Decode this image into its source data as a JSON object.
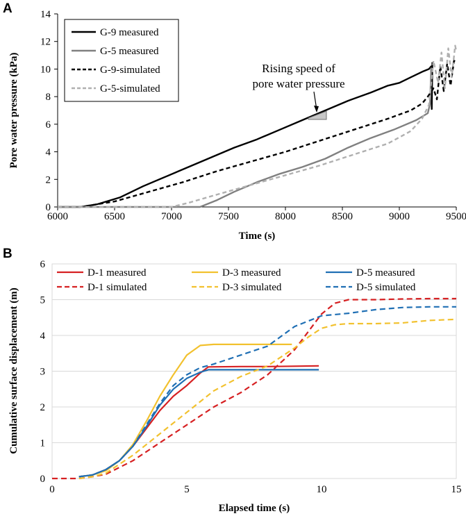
{
  "chart_data": [
    {
      "panel": "A",
      "type": "line",
      "title": "",
      "xlabel": "Time (s)",
      "ylabel": "Pore water pressure (kPa)",
      "xlim": [
        6000,
        9500
      ],
      "ylim": [
        0,
        14
      ],
      "xticks": [
        6000,
        6500,
        7000,
        7500,
        8000,
        8500,
        9000,
        9500
      ],
      "yticks": [
        0,
        2,
        4,
        6,
        8,
        10,
        12,
        14
      ],
      "legend_position": "top-left",
      "annotation": [
        "Rising speed of",
        "pore water pressure"
      ],
      "series": [
        {
          "name": "G-9 measured",
          "color": "#000000",
          "dash": "solid",
          "x": [
            6000,
            6200,
            6350,
            6550,
            6750,
            6950,
            7150,
            7350,
            7550,
            7750,
            7950,
            8150,
            8350,
            8550,
            8750,
            8900,
            9000,
            9100,
            9200,
            9260,
            9280,
            9285,
            9290
          ],
          "y": [
            0,
            0,
            0.2,
            0.7,
            1.5,
            2.2,
            2.9,
            3.6,
            4.3,
            4.9,
            5.6,
            6.3,
            7.0,
            7.7,
            8.3,
            8.8,
            9.0,
            9.4,
            9.8,
            10.0,
            10.2,
            7.1,
            10.5
          ]
        },
        {
          "name": "G-5 measured",
          "color": "#808080",
          "dash": "solid",
          "x": [
            6000,
            7250,
            7400,
            7550,
            7750,
            7950,
            8150,
            8350,
            8550,
            8750,
            8950,
            9150,
            9250,
            9270,
            9280
          ],
          "y": [
            0,
            0,
            0.5,
            1.1,
            1.8,
            2.4,
            2.9,
            3.5,
            4.3,
            5.0,
            5.6,
            6.3,
            6.8,
            7.5,
            10.1
          ]
        },
        {
          "name": "G-9-simulated",
          "color": "#000000",
          "dash": "dashed",
          "x": [
            6000,
            6200,
            6500,
            6800,
            7100,
            7400,
            7700,
            8000,
            8300,
            8600,
            8900,
            9100,
            9200,
            9250,
            9300,
            9330,
            9360,
            9390,
            9420,
            9450,
            9480,
            9500
          ],
          "y": [
            0,
            0,
            0.4,
            1.1,
            1.8,
            2.6,
            3.3,
            4.0,
            4.8,
            5.6,
            6.4,
            7.0,
            7.5,
            8.0,
            8.6,
            7.8,
            10.2,
            8.4,
            10.4,
            8.8,
            10.6,
            10.5
          ]
        },
        {
          "name": "G-5-simulated",
          "color": "#b0b0b0",
          "dash": "dashed",
          "x": [
            6000,
            7000,
            7150,
            7400,
            7700,
            8000,
            8300,
            8600,
            8900,
            9100,
            9200,
            9260,
            9300,
            9340,
            9370,
            9400,
            9430,
            9460,
            9490,
            9500
          ],
          "y": [
            0,
            0,
            0.3,
            0.9,
            1.6,
            2.3,
            3.0,
            3.8,
            4.6,
            5.5,
            6.4,
            7.4,
            10.6,
            9.0,
            11.2,
            8.6,
            11.5,
            9.4,
            11.7,
            11.3
          ]
        }
      ]
    },
    {
      "panel": "B",
      "type": "line",
      "title": "",
      "xlabel": "Elapsed time (s)",
      "ylabel": "Cumulative surface displacement (m)",
      "xlim": [
        0,
        15
      ],
      "ylim": [
        0,
        6
      ],
      "xticks": [
        0,
        5,
        10,
        15
      ],
      "yticks": [
        0,
        1,
        2,
        3,
        4,
        5,
        6
      ],
      "legend_position": "top",
      "series": [
        {
          "name": "D-1 measured",
          "color": "#d62022",
          "dash": "solid",
          "x": [
            1,
            1.5,
            2,
            2.5,
            3,
            3.5,
            4,
            4.5,
            5,
            5.5,
            5.8,
            7,
            8,
            9,
            9.9
          ],
          "y": [
            0.05,
            0.1,
            0.25,
            0.5,
            0.9,
            1.4,
            1.9,
            2.3,
            2.6,
            2.95,
            3.12,
            3.13,
            3.13,
            3.14,
            3.15
          ]
        },
        {
          "name": "D-3 measured",
          "color": "#f2c12e",
          "dash": "solid",
          "x": [
            1,
            1.5,
            2,
            2.5,
            3,
            3.5,
            4,
            4.5,
            5,
            5.5,
            6,
            7,
            8,
            8.9
          ],
          "y": [
            0.05,
            0.1,
            0.22,
            0.5,
            0.95,
            1.6,
            2.3,
            2.9,
            3.45,
            3.72,
            3.75,
            3.75,
            3.75,
            3.75
          ]
        },
        {
          "name": "D-5 measured",
          "color": "#1f6fb4",
          "dash": "solid",
          "x": [
            1,
            1.5,
            2,
            2.5,
            3,
            3.5,
            4,
            4.5,
            5,
            5.5,
            5.8,
            7,
            8,
            9,
            9.9
          ],
          "y": [
            0.05,
            0.1,
            0.25,
            0.5,
            0.9,
            1.45,
            2.05,
            2.5,
            2.8,
            2.97,
            3.04,
            3.04,
            3.04,
            3.04,
            3.04
          ]
        },
        {
          "name": "D-1 simulated",
          "color": "#d62022",
          "dash": "dashed",
          "x": [
            0,
            1,
            1.5,
            2,
            3,
            4,
            5,
            6,
            7,
            8,
            9,
            9.5,
            10,
            10.5,
            11,
            12,
            13,
            14,
            15
          ],
          "y": [
            0,
            0,
            0.05,
            0.12,
            0.5,
            1.0,
            1.5,
            2.0,
            2.4,
            2.9,
            3.6,
            4.1,
            4.6,
            4.9,
            5.0,
            5.0,
            5.02,
            5.03,
            5.03
          ]
        },
        {
          "name": "D-3 simulated",
          "color": "#f2c12e",
          "dash": "dashed",
          "x": [
            1,
            1.5,
            2,
            3,
            4,
            5,
            6,
            7,
            8,
            9,
            9.5,
            10,
            10.5,
            11,
            12,
            13,
            14,
            15
          ],
          "y": [
            0,
            0.05,
            0.15,
            0.65,
            1.25,
            1.85,
            2.45,
            2.85,
            3.15,
            3.65,
            3.95,
            4.2,
            4.3,
            4.33,
            4.33,
            4.35,
            4.42,
            4.45
          ]
        },
        {
          "name": "D-5 simulated",
          "color": "#1f6fb4",
          "dash": "dashed",
          "x": [
            1,
            1.5,
            2,
            2.5,
            3,
            3.5,
            4,
            4.5,
            5,
            5.5,
            6,
            7,
            8,
            9,
            10,
            11,
            12,
            13,
            14,
            15
          ],
          "y": [
            0.05,
            0.1,
            0.25,
            0.5,
            0.9,
            1.5,
            2.1,
            2.6,
            2.9,
            3.1,
            3.2,
            3.45,
            3.7,
            4.25,
            4.55,
            4.62,
            4.72,
            4.78,
            4.8,
            4.8
          ]
        }
      ]
    }
  ]
}
